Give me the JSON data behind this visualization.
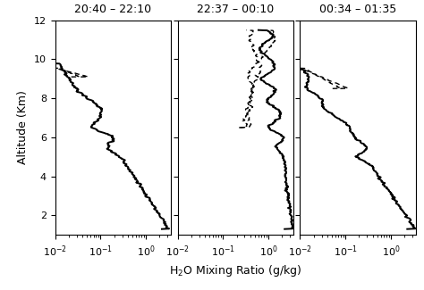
{
  "titles": [
    "20:40 – 22:10",
    "22:37 – 00:10",
    "00:34 – 01:35"
  ],
  "xlabel": "H$_2$O Mixing Ratio (g/kg)",
  "ylabel": "Altitude (Km)",
  "xlim": [
    0.01,
    3.5
  ],
  "ylim": [
    1,
    12
  ],
  "yticks": [
    2,
    4,
    6,
    8,
    10,
    12
  ],
  "background_color": "#ffffff",
  "title_fontsize": 9,
  "label_fontsize": 9,
  "tick_fontsize": 8
}
